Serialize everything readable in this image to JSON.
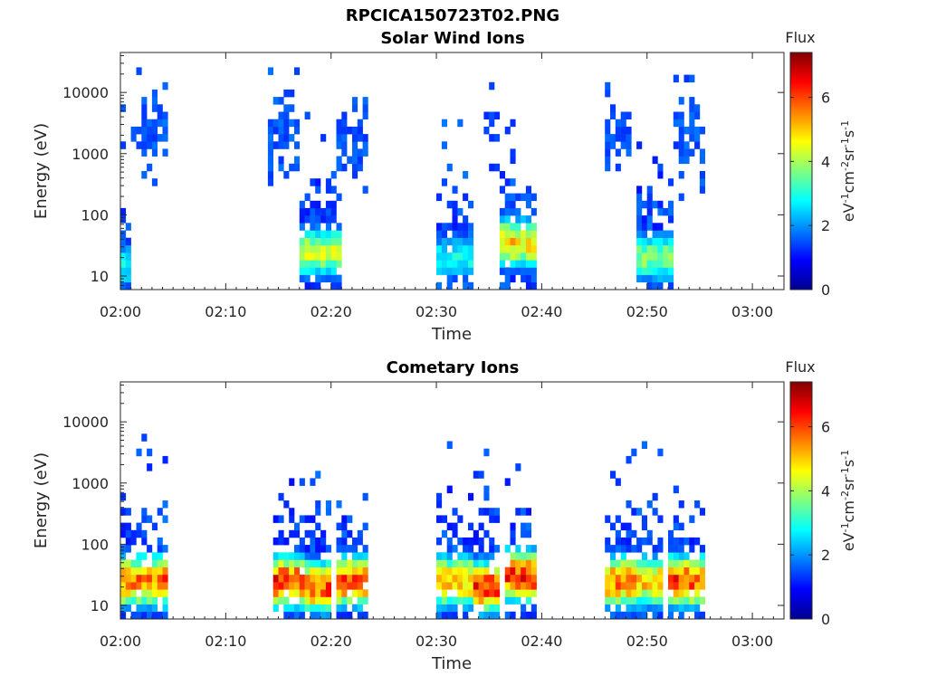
{
  "figure": {
    "title": "RPCICA150723T02.PNG"
  },
  "colormap": "jet",
  "chart_data": [
    {
      "type": "heatmap",
      "title": "Solar Wind Ions",
      "xlabel": "Time",
      "ylabel": "Energy (eV)",
      "x_ticks": [
        "02:00",
        "02:10",
        "02:20",
        "02:30",
        "02:40",
        "02:50",
        "03:00"
      ],
      "x_range_min": [
        0,
        63
      ],
      "y_scale": "log",
      "y_ticks": [
        10,
        100,
        1000,
        10000
      ],
      "y_tick_labels": [
        "10",
        "100",
        "1000",
        "10000"
      ],
      "y_range": [
        6,
        45000
      ],
      "colorbar": {
        "title": "Flux",
        "units": "eV-1cm-2sr-1s-1",
        "range": [
          0,
          7.4
        ],
        "ticks": [
          "0",
          "2",
          "4",
          "6"
        ]
      },
      "activity_bands": [
        {
          "start_min": 0.0,
          "end_min": 1.0,
          "peak_flux": 3.2,
          "core_energy_ev": 15
        },
        {
          "start_min": 1.0,
          "end_min": 4.5,
          "peak_flux": 1.8,
          "core_energy_ev": 2000
        },
        {
          "start_min": 14.0,
          "end_min": 17.0,
          "peak_flux": 1.8,
          "core_energy_ev": 2000
        },
        {
          "start_min": 17.0,
          "end_min": 21.0,
          "peak_flux": 4.8,
          "core_energy_ev": 25
        },
        {
          "start_min": 20.5,
          "end_min": 23.5,
          "peak_flux": 1.8,
          "core_energy_ev": 2000
        },
        {
          "start_min": 30.0,
          "end_min": 33.5,
          "peak_flux": 3.2,
          "core_energy_ev": 20
        },
        {
          "start_min": 34.5,
          "end_min": 36.0,
          "peak_flux": 1.6,
          "core_energy_ev": 3000
        },
        {
          "start_min": 36.0,
          "end_min": 39.5,
          "peak_flux": 5.5,
          "core_energy_ev": 35
        },
        {
          "start_min": 46.0,
          "end_min": 48.5,
          "peak_flux": 1.8,
          "core_energy_ev": 2000
        },
        {
          "start_min": 49.0,
          "end_min": 52.5,
          "peak_flux": 4.2,
          "core_energy_ev": 20
        },
        {
          "start_min": 52.5,
          "end_min": 55.5,
          "peak_flux": 1.8,
          "core_energy_ev": 2000
        }
      ]
    },
    {
      "type": "heatmap",
      "title": "Cometary Ions",
      "xlabel": "Time",
      "ylabel": "Energy (eV)",
      "x_ticks": [
        "02:00",
        "02:10",
        "02:20",
        "02:30",
        "02:40",
        "02:50",
        "03:00"
      ],
      "x_range_min": [
        0,
        63
      ],
      "y_scale": "log",
      "y_ticks": [
        10,
        100,
        1000,
        10000
      ],
      "y_tick_labels": [
        "10",
        "100",
        "1000",
        "10000"
      ],
      "y_range": [
        6,
        45000
      ],
      "colorbar": {
        "title": "Flux",
        "units": "eV-1cm-2sr-1s-1",
        "range": [
          0,
          7.4
        ],
        "ticks": [
          "0",
          "2",
          "4",
          "6"
        ]
      },
      "activity_bands": [
        {
          "start_min": 0.0,
          "end_min": 4.5,
          "peak_flux": 6.5,
          "core_energy_ev": 25
        },
        {
          "start_min": 14.5,
          "end_min": 17.5,
          "peak_flux": 7.0,
          "core_energy_ev": 25
        },
        {
          "start_min": 17.5,
          "end_min": 20.0,
          "peak_flux": 6.8,
          "core_energy_ev": 20
        },
        {
          "start_min": 20.5,
          "end_min": 23.5,
          "peak_flux": 6.8,
          "core_energy_ev": 25
        },
        {
          "start_min": 30.0,
          "end_min": 33.5,
          "peak_flux": 6.0,
          "core_energy_ev": 25
        },
        {
          "start_min": 33.5,
          "end_min": 36.0,
          "peak_flux": 7.0,
          "core_energy_ev": 20
        },
        {
          "start_min": 36.5,
          "end_min": 39.5,
          "peak_flux": 7.0,
          "core_energy_ev": 30
        },
        {
          "start_min": 46.0,
          "end_min": 49.0,
          "peak_flux": 6.5,
          "core_energy_ev": 25
        },
        {
          "start_min": 49.0,
          "end_min": 51.5,
          "peak_flux": 5.8,
          "core_energy_ev": 25
        },
        {
          "start_min": 52.0,
          "end_min": 55.5,
          "peak_flux": 6.8,
          "core_energy_ev": 25
        }
      ]
    }
  ]
}
